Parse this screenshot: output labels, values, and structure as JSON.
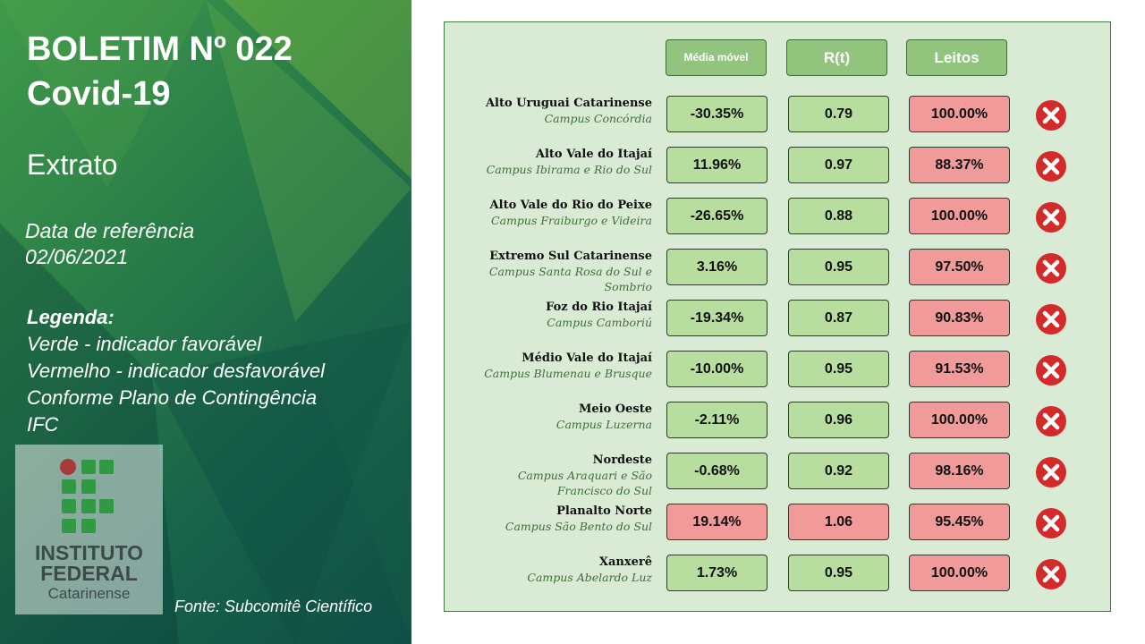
{
  "sidebar": {
    "title_line1": "BOLETIM Nº 022",
    "title_line2": "Covid-19",
    "subtitle": "Extrato",
    "ref_label": "Data de referência",
    "ref_date": "02/06/2021",
    "legend_title": "Legenda:",
    "legend_lines": [
      "Verde - indicador favorável",
      "Vermelho - indicador desfavorável",
      "Conforme Plano de Contingência",
      "IFC"
    ],
    "logo": {
      "line1": "INSTITUTO",
      "line2": "FEDERAL",
      "line3": "Catarinense"
    },
    "source": "Fonte: Subcomitê Científico"
  },
  "table": {
    "headers": [
      "Média móvel",
      "R(t)",
      "Leitos"
    ],
    "rows": [
      {
        "region": "Alto Uruguai Catarinense",
        "campus": "Campus Concórdia",
        "media": "-30.35%",
        "rt": "0.79",
        "leitos": "100.00%",
        "status": [
          "green",
          "green",
          "red"
        ],
        "icon": "red-x-icon"
      },
      {
        "region": "Alto Vale do Itajaí",
        "campus": "Campus Ibirama e Rio do Sul",
        "media": "11.96%",
        "rt": "0.97",
        "leitos": "88.37%",
        "status": [
          "green",
          "green",
          "red"
        ],
        "icon": "red-x-icon"
      },
      {
        "region": "Alto Vale do Rio do Peixe",
        "campus": "Campus Fraiburgo e Videira",
        "media": "-26.65%",
        "rt": "0.88",
        "leitos": "100.00%",
        "status": [
          "green",
          "green",
          "red"
        ],
        "icon": "red-x-icon"
      },
      {
        "region": "Extremo Sul Catarinense",
        "campus": "Campus Santa Rosa do Sul e Sombrio",
        "media": "3.16%",
        "rt": "0.95",
        "leitos": "97.50%",
        "status": [
          "green",
          "green",
          "red"
        ],
        "icon": "red-x-icon"
      },
      {
        "region": "Foz do Rio Itajaí",
        "campus": "Campus Camboriú",
        "media": "-19.34%",
        "rt": "0.87",
        "leitos": "90.83%",
        "status": [
          "green",
          "green",
          "red"
        ],
        "icon": "red-x-icon"
      },
      {
        "region": "Médio Vale do Itajaí",
        "campus": "Campus Blumenau e Brusque",
        "media": "-10.00%",
        "rt": "0.95",
        "leitos": "91.53%",
        "status": [
          "green",
          "green",
          "red"
        ],
        "icon": "red-x-icon"
      },
      {
        "region": "Meio Oeste",
        "campus": "Campus Luzerna",
        "media": "-2.11%",
        "rt": "0.96",
        "leitos": "100.00%",
        "status": [
          "green",
          "green",
          "red"
        ],
        "icon": "red-x-icon"
      },
      {
        "region": "Nordeste",
        "campus": "Campus Araquari e São Francisco do Sul",
        "media": "-0.68%",
        "rt": "0.92",
        "leitos": "98.16%",
        "status": [
          "green",
          "green",
          "red"
        ],
        "icon": "red-x-icon"
      },
      {
        "region": "Planalto Norte",
        "campus": "Campus São Bento do Sul",
        "media": "19.14%",
        "rt": "1.06",
        "leitos": "95.45%",
        "status": [
          "red",
          "red",
          "red"
        ],
        "icon": "red-x-icon"
      },
      {
        "region": "Xanxerê",
        "campus": "Campus Abelardo Luz",
        "media": "1.73%",
        "rt": "0.95",
        "leitos": "100.00%",
        "status": [
          "green",
          "green",
          "red"
        ],
        "icon": "red-x-icon"
      }
    ]
  },
  "colors": {
    "favorable": "#b7dd9f",
    "unfavorable": "#f09a9a",
    "panel": "#d9ebd5",
    "header": "#93c47d",
    "x_icon": "#d42a2a"
  }
}
